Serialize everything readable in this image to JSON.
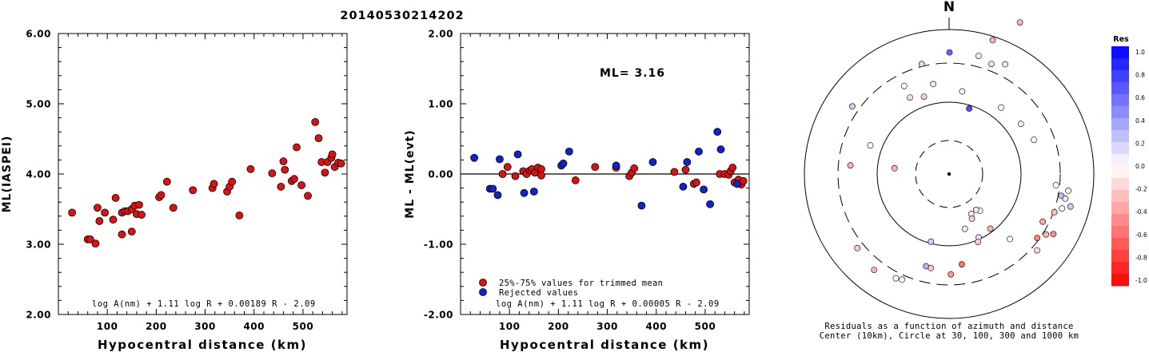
{
  "page_title": "20140530214202",
  "chart_data": [
    {
      "type": "scatter",
      "title": "",
      "xlabel": "Hypocentral distance (km)",
      "ylabel": "ML(IASPEI)",
      "xlim": [
        0,
        590
      ],
      "ylim": [
        2.0,
        6.0
      ],
      "xticks": [
        100,
        200,
        300,
        400,
        500
      ],
      "yticks": [
        2.0,
        3.0,
        4.0,
        5.0,
        6.0
      ],
      "ytick_labels": [
        "2.00",
        "3.00",
        "4.00",
        "5.00",
        "6.00"
      ],
      "annotation": "log A(nm) + 1.11 log R + 0.00189 R - 2.09",
      "marker_color": "#dd1111",
      "series": [
        {
          "points": [
            [
              28,
              3.45
            ],
            [
              60,
              3.07
            ],
            [
              65,
              3.07
            ],
            [
              76,
              3.01
            ],
            [
              80,
              3.52
            ],
            [
              84,
              3.33
            ],
            [
              95,
              3.45
            ],
            [
              112,
              3.35
            ],
            [
              117,
              3.66
            ],
            [
              130,
              3.14
            ],
            [
              130,
              3.45
            ],
            [
              136,
              3.47
            ],
            [
              142,
              3.47
            ],
            [
              150,
              3.18
            ],
            [
              150,
              3.5
            ],
            [
              156,
              3.55
            ],
            [
              160,
              3.43
            ],
            [
              165,
              3.56
            ],
            [
              170,
              3.42
            ],
            [
              206,
              3.67
            ],
            [
              210,
              3.7
            ],
            [
              222,
              3.89
            ],
            [
              235,
              3.52
            ],
            [
              275,
              3.77
            ],
            [
              315,
              3.8
            ],
            [
              318,
              3.86
            ],
            [
              345,
              3.75
            ],
            [
              350,
              3.82
            ],
            [
              355,
              3.89
            ],
            [
              370,
              3.41
            ],
            [
              393,
              4.07
            ],
            [
              437,
              4.01
            ],
            [
              455,
              3.82
            ],
            [
              460,
              4.18
            ],
            [
              463,
              4.06
            ],
            [
              477,
              3.9
            ],
            [
              482,
              3.93
            ],
            [
              487,
              4.38
            ],
            [
              497,
              3.84
            ],
            [
              510,
              3.69
            ],
            [
              525,
              4.74
            ],
            [
              532,
              4.51
            ],
            [
              538,
              4.17
            ],
            [
              545,
              4.02
            ],
            [
              550,
              4.17
            ],
            [
              558,
              4.23
            ],
            [
              560,
              4.28
            ],
            [
              565,
              4.1
            ],
            [
              572,
              4.16
            ],
            [
              578,
              4.15
            ]
          ]
        }
      ]
    },
    {
      "type": "scatter",
      "title": "",
      "xlabel": "Hypocentral distance (km)",
      "ylabel": "ML - ML(evt)",
      "xlim": [
        0,
        590
      ],
      "ylim": [
        -2.0,
        2.0
      ],
      "xticks": [
        100,
        200,
        300,
        400,
        500
      ],
      "yticks": [
        -2.0,
        -1.0,
        0.0,
        1.0,
        2.0
      ],
      "ytick_labels": [
        "-2.00",
        "-1.00",
        "0.00",
        "1.00",
        "2.00"
      ],
      "ml_label": "ML= 3.16",
      "annotation": "log A(nm) + 1.11 log R + 0.00005 R - 2.09",
      "legend": [
        {
          "label": "25%-75% values for trimmed mean",
          "color": "#dd1111"
        },
        {
          "label": "Rejected values",
          "color": "#1122cc"
        }
      ],
      "series": [
        {
          "name": "25%-75% values for trimmed mean",
          "color": "#dd1111",
          "points": [
            [
              86,
              0.0
            ],
            [
              96,
              0.1
            ],
            [
              112,
              -0.03
            ],
            [
              128,
              0.04
            ],
            [
              135,
              0.0
            ],
            [
              142,
              0.05
            ],
            [
              146,
              0.07
            ],
            [
              152,
              0.02
            ],
            [
              158,
              0.09
            ],
            [
              165,
              0.07
            ],
            [
              165,
              -0.02
            ],
            [
              235,
              -0.09
            ],
            [
              275,
              0.1
            ],
            [
              318,
              0.09
            ],
            [
              345,
              -0.03
            ],
            [
              350,
              0.02
            ],
            [
              355,
              0.08
            ],
            [
              437,
              0.03
            ],
            [
              460,
              0.06
            ],
            [
              477,
              -0.14
            ],
            [
              482,
              -0.12
            ],
            [
              530,
              0.0
            ],
            [
              540,
              0.0
            ],
            [
              548,
              -0.01
            ],
            [
              552,
              0.04
            ],
            [
              556,
              0.09
            ],
            [
              560,
              -0.12
            ],
            [
              568,
              -0.08
            ],
            [
              574,
              -0.15
            ],
            [
              578,
              -0.1
            ]
          ]
        },
        {
          "name": "Rejected values",
          "color": "#1122cc",
          "points": [
            [
              28,
              0.23
            ],
            [
              60,
              -0.21
            ],
            [
              66,
              -0.21
            ],
            [
              76,
              -0.3
            ],
            [
              80,
              0.21
            ],
            [
              117,
              0.28
            ],
            [
              130,
              -0.27
            ],
            [
              150,
              -0.25
            ],
            [
              206,
              0.12
            ],
            [
              210,
              0.15
            ],
            [
              222,
              0.32
            ],
            [
              318,
              0.12
            ],
            [
              370,
              -0.45
            ],
            [
              393,
              0.17
            ],
            [
              455,
              -0.18
            ],
            [
              463,
              0.17
            ],
            [
              487,
              0.32
            ],
            [
              497,
              -0.22
            ],
            [
              510,
              -0.43
            ],
            [
              525,
              0.6
            ],
            [
              532,
              0.35
            ],
            [
              565,
              -0.14
            ]
          ]
        }
      ]
    },
    {
      "type": "scatter",
      "subtype": "polar",
      "north_label": "N",
      "caption_line1": "Residuals as a function of azimuth and distance",
      "caption_line2": "Center (10km), Circle at 30, 100, 300 and 1000 km",
      "colorbar": {
        "title": "Res",
        "tick_labels": [
          "1.0",
          "0.8",
          "0.6",
          "0.4",
          "0.2",
          "0.0",
          "-0.2",
          "-0.4",
          "-0.6",
          "-0.8",
          "-1.0"
        ],
        "min": -1.0,
        "max": 1.0
      },
      "points": [
        [
          0.2,
          160,
          0.6
        ],
        [
          9,
          110,
          0.05
        ],
        [
          17,
          90,
          0.7
        ],
        [
          38,
          111,
          0.0
        ],
        [
          27,
          162,
          0.1
        ],
        [
          14,
          160,
          -0.1
        ],
        [
          21,
          155,
          -0.15
        ],
        [
          18,
          185,
          -0.3
        ],
        [
          25,
          220,
          -0.3
        ],
        [
          55,
          115,
          0.05
        ],
        [
          68,
          120,
          0.0
        ],
        [
          305,
          155,
          0.2
        ],
        [
          333,
          130,
          0.0
        ],
        [
          342,
          107,
          -0.2
        ],
        [
          350,
          120,
          -0.1
        ],
        [
          96,
          141,
          0.0
        ],
        [
          98,
          158,
          0.05
        ],
        [
          101,
          150,
          0.25
        ],
        [
          102,
          156,
          0.1
        ],
        [
          105,
          165,
          0.2
        ],
        [
          107,
          155,
          0.0
        ],
        [
          110,
          147,
          -0.25
        ],
        [
          117,
          138,
          -0.35
        ],
        [
          120,
          158,
          -0.45
        ],
        [
          122,
          150,
          -0.3
        ],
        [
          126,
          143,
          -0.5
        ],
        [
          131,
          153,
          -0.15
        ],
        [
          137,
          117,
          0.0
        ],
        [
          143,
          90,
          -0.3
        ],
        [
          140,
          63,
          0.0
        ],
        [
          143,
          59,
          0.1
        ],
        [
          151,
          60,
          -0.1
        ],
        [
          153,
          66,
          -0.2
        ],
        [
          155,
          92,
          0.1
        ],
        [
          157,
          97,
          -0.2
        ],
        [
          164,
          75,
          -0.1
        ],
        [
          172,
          120,
          -0.55
        ],
        [
          179,
          132,
          -0.4
        ],
        [
          191,
          126,
          -0.2
        ],
        [
          194,
          125,
          0.3
        ],
        [
          195,
          92,
          0.2
        ],
        [
          204,
          152,
          0.0
        ],
        [
          207,
          154,
          0.0
        ],
        [
          218,
          160,
          -0.3
        ],
        [
          231,
          155,
          -0.2
        ],
        [
          275,
          130,
          -0.3
        ],
        [
          276,
          72,
          -0.3
        ],
        [
          290,
          110,
          0.0
        ],
        [
          333,
          113,
          -0.15
        ],
        [
          346,
          149,
          0.15
        ]
      ]
    }
  ]
}
